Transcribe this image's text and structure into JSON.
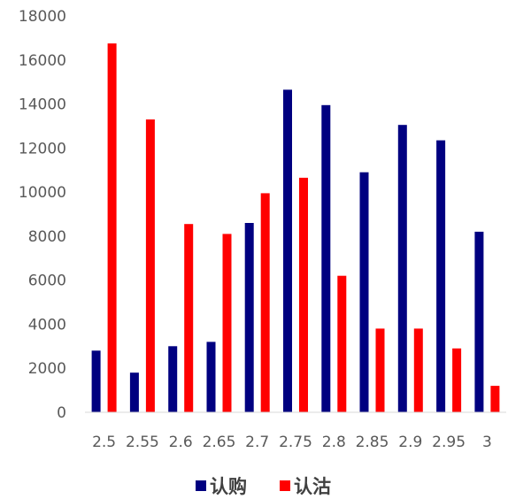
{
  "chart_data": {
    "type": "bar",
    "categories": [
      "2.5",
      "2.55",
      "2.6",
      "2.65",
      "2.7",
      "2.75",
      "2.8",
      "2.85",
      "2.9",
      "2.95",
      "3"
    ],
    "series": [
      {
        "name": "认购",
        "color": "#000080",
        "values": [
          2800,
          1800,
          3000,
          3200,
          8600,
          14650,
          13950,
          10900,
          13050,
          12350,
          8200
        ]
      },
      {
        "name": "认沽",
        "color": "#FF0000",
        "values": [
          16750,
          13300,
          8550,
          8100,
          9950,
          10650,
          6200,
          3800,
          3800,
          2900,
          1200
        ]
      }
    ],
    "ylim": [
      0,
      18000
    ],
    "yticks": [
      "0",
      "2000",
      "4000",
      "6000",
      "8000",
      "10000",
      "12000",
      "14000",
      "16000",
      "18000"
    ],
    "grid": false,
    "legend_position": "bottom"
  }
}
